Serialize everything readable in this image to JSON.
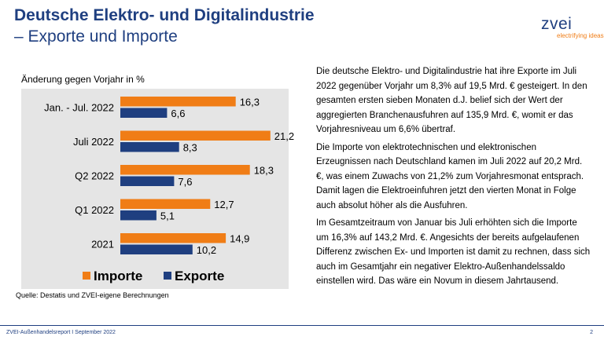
{
  "header": {
    "title": "Deutsche Elektro- und Digitalindustrie",
    "subtitle": "– Exporte und Importe"
  },
  "logo": {
    "brand": "zvei",
    "tagline": "electrifying ideas"
  },
  "chart_subtitle": "Änderung gegen Vorjahr in %",
  "chart_data": {
    "type": "bar",
    "orientation": "horizontal",
    "categories": [
      "Jan. - Jul. 2022",
      "Juli 2022",
      "Q2 2022",
      "Q1 2022",
      "2021"
    ],
    "series": [
      {
        "name": "Importe",
        "values": [
          16.3,
          21.2,
          18.3,
          12.7,
          14.9
        ],
        "color": "#f07d16"
      },
      {
        "name": "Exporte",
        "values": [
          6.6,
          8.3,
          7.6,
          5.1,
          10.2
        ],
        "color": "#1f3f80"
      }
    ],
    "value_labels": {
      "Importe": [
        "16,3",
        "21,2",
        "18,3",
        "12,7",
        "14,9"
      ],
      "Exporte": [
        "6,6",
        "8,3",
        "7,6",
        "5,1",
        "10,2"
      ]
    },
    "legend_position": "bottom",
    "grid": false,
    "xlim": [
      0,
      25
    ]
  },
  "source": "Quelle: Destatis und ZVEI-eigene Berechnungen",
  "paragraphs": [
    "Die deutsche Elektro- und Digitalindustrie hat ihre Exporte im Juli 2022 gegenüber Vorjahr um 8,3% auf 19,5 Mrd. € gesteigert. In den gesamten ersten sieben Monaten d.J. belief sich der Wert der aggregierten Branchenausfuhren auf 135,9 Mrd. €, womit er das Vorjahresniveau um 6,6% übertraf.",
    "Die Importe von elektrotechnischen und elektronischen Erzeugnissen nach Deutschland kamen im Juli 2022 auf 20,2 Mrd. €, was einem Zuwachs von 21,2% zum Vorjahresmonat entsprach. Damit lagen die Elektroeinfuhren jetzt den vierten Monat in Folge auch absolut höher als die Ausfuhren.",
    "Im Gesamtzeitraum von Januar bis Juli erhöhten sich die Importe um 16,3% auf 143,2 Mrd. €. Angesichts der bereits aufgelaufenen Differenz zwischen Ex- und Importen ist damit zu rechnen, dass sich auch im Gesamtjahr ein negativer Elektro-Außenhandelssaldo einstellen wird. Das wäre ein Novum in diesem Jahrtausend."
  ],
  "footer": {
    "left": "ZVEI-Außenhandelsreport I September 2022",
    "page_number": "2"
  }
}
